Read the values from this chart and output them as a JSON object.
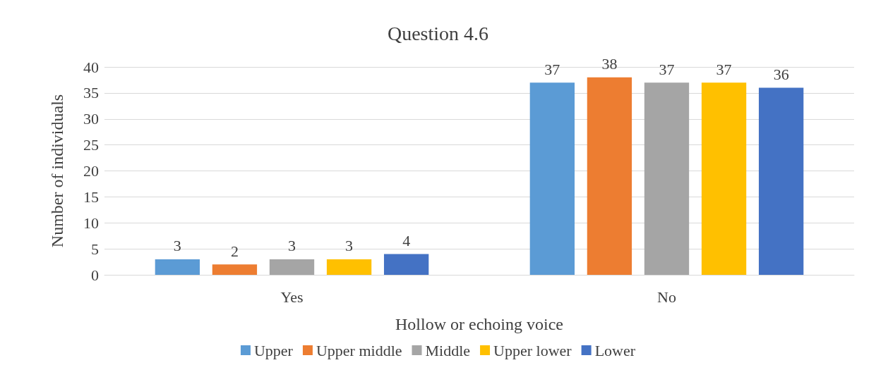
{
  "chart_data": {
    "type": "bar",
    "title": "Question 4.6",
    "xlabel": "Hollow or echoing voice",
    "ylabel": "Number of individuals",
    "categories": [
      "Yes",
      "No"
    ],
    "series": [
      {
        "name": "Upper",
        "color": "#5b9bd5",
        "values": [
          3,
          37
        ]
      },
      {
        "name": "Upper middle",
        "color": "#ed7d31",
        "values": [
          2,
          38
        ]
      },
      {
        "name": "Middle",
        "color": "#a5a5a5",
        "values": [
          3,
          37
        ]
      },
      {
        "name": "Upper lower",
        "color": "#ffc000",
        "values": [
          3,
          37
        ]
      },
      {
        "name": "Lower",
        "color": "#4472c4",
        "values": [
          4,
          36
        ]
      }
    ],
    "ylim": [
      0,
      40
    ],
    "yticks": [
      0,
      5,
      10,
      15,
      20,
      25,
      30,
      35,
      40
    ],
    "grid": "y",
    "legend": "bottom",
    "data_labels": true
  }
}
